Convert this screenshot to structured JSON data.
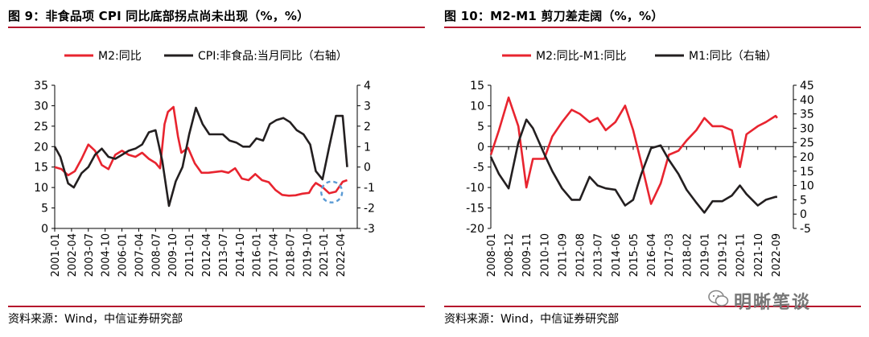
{
  "left": {
    "title": "图 9：非食品项 CPI 同比底部拐点尚未出现（%，%）",
    "source": "资料来源：Wind，中信证券研究部"
  },
  "right": {
    "title": "图 10：M2-M1 剪刀差走阔（%，%）",
    "source": "资料来源：Wind，中信证券研究部"
  },
  "watermark": "明晰笔谈",
  "colors": {
    "red": "#e8242f",
    "black": "#231f20",
    "rule": "#b5162c",
    "circle": "#5b9bd5"
  },
  "chart_data": [
    {
      "type": "line",
      "title": "图 9：非食品项 CPI 同比底部拐点尚未出现（%，%）",
      "legend_position": "top",
      "grid": false,
      "x_tick_labels": [
        "2001-01",
        "2002-04",
        "2003-07",
        "2004-10",
        "2006-01",
        "2007-04",
        "2008-07",
        "2009-10",
        "2011-01",
        "2012-04",
        "2013-07",
        "2014-10",
        "2016-01",
        "2017-04",
        "2018-07",
        "2019-10",
        "2021-01",
        "2022-04"
      ],
      "y_left": {
        "ticks": [
          0,
          5,
          10,
          15,
          20,
          25,
          30,
          35
        ],
        "ylim": [
          0,
          35
        ]
      },
      "y_right": {
        "ticks": [
          -3,
          -2,
          -1,
          0,
          1,
          2,
          3,
          4
        ],
        "ylim": [
          -3,
          4
        ]
      },
      "series": [
        {
          "name": "M2:同比",
          "axis": "left",
          "color": "red",
          "x": [
            "2001-01",
            "2001-07",
            "2002-01",
            "2002-07",
            "2003-01",
            "2003-07",
            "2004-01",
            "2004-07",
            "2005-01",
            "2005-07",
            "2006-01",
            "2006-07",
            "2007-01",
            "2007-07",
            "2008-01",
            "2008-07",
            "2008-11",
            "2009-03",
            "2009-06",
            "2009-11",
            "2010-03",
            "2010-06",
            "2010-12",
            "2011-06",
            "2011-12",
            "2012-06",
            "2012-12",
            "2013-06",
            "2013-12",
            "2014-06",
            "2014-12",
            "2015-06",
            "2015-12",
            "2016-06",
            "2016-12",
            "2017-06",
            "2017-12",
            "2018-06",
            "2018-12",
            "2019-06",
            "2019-12",
            "2020-03",
            "2020-06",
            "2020-12",
            "2021-06",
            "2021-12",
            "2022-06",
            "2022-10"
          ],
          "y": [
            15.0,
            14.5,
            13.0,
            14.0,
            17.0,
            20.5,
            19.0,
            15.5,
            14.5,
            18.0,
            19.0,
            18.0,
            17.5,
            18.5,
            17.0,
            16.0,
            14.7,
            25.5,
            28.5,
            29.7,
            22.5,
            18.5,
            19.7,
            15.9,
            13.6,
            13.6,
            13.8,
            14.0,
            13.6,
            14.7,
            12.2,
            11.8,
            13.3,
            11.8,
            11.3,
            9.4,
            8.2,
            8.0,
            8.1,
            8.5,
            8.7,
            10.1,
            11.1,
            10.1,
            8.6,
            9.0,
            11.4,
            11.8
          ]
        },
        {
          "name": "CPI:非食品:当月同比（右轴）",
          "axis": "right",
          "color": "black",
          "x": [
            "2001-01",
            "2001-06",
            "2002-01",
            "2002-06",
            "2003-01",
            "2003-07",
            "2004-01",
            "2004-07",
            "2005-01",
            "2005-07",
            "2006-01",
            "2006-07",
            "2007-01",
            "2007-07",
            "2008-01",
            "2008-07",
            "2009-01",
            "2009-07",
            "2010-01",
            "2010-07",
            "2011-01",
            "2011-07",
            "2012-01",
            "2012-07",
            "2013-01",
            "2013-07",
            "2014-01",
            "2014-07",
            "2015-01",
            "2015-07",
            "2016-01",
            "2016-07",
            "2017-01",
            "2017-07",
            "2018-01",
            "2018-07",
            "2019-01",
            "2019-07",
            "2020-01",
            "2020-06",
            "2020-12",
            "2021-06",
            "2021-12",
            "2022-06",
            "2022-10"
          ],
          "y": [
            1.0,
            0.5,
            -0.8,
            -1.0,
            -0.3,
            0.0,
            0.6,
            0.9,
            0.5,
            0.4,
            0.6,
            0.8,
            0.9,
            1.1,
            1.7,
            1.8,
            0.3,
            -1.9,
            -0.7,
            0.0,
            1.6,
            2.9,
            2.1,
            1.6,
            1.6,
            1.6,
            1.3,
            1.2,
            1.0,
            1.0,
            1.4,
            1.3,
            2.1,
            2.3,
            2.4,
            2.2,
            1.8,
            1.6,
            1.1,
            -0.2,
            -0.6,
            1.0,
            2.5,
            2.5,
            0.0
          ]
        }
      ],
      "annotations": [
        {
          "shape": "dashed-circle",
          "near": "2021-01"
        }
      ]
    },
    {
      "type": "line",
      "title": "图 10：M2-M1 剪刀差走阔（%，%）",
      "legend_position": "top",
      "grid": false,
      "x_tick_labels": [
        "2008-01",
        "2008-12",
        "2009-11",
        "2010-10",
        "2011-09",
        "2012-08",
        "2013-07",
        "2014-06",
        "2015-05",
        "2016-04",
        "2017-03",
        "2018-02",
        "2019-01",
        "2019-12",
        "2020-11",
        "2021-10",
        "2022-09"
      ],
      "y_left": {
        "ticks": [
          -20,
          -15,
          -10,
          -5,
          0,
          5,
          10,
          15
        ],
        "ylim": [
          -20,
          15
        ]
      },
      "y_right": {
        "ticks": [
          -5,
          0,
          5,
          10,
          15,
          20,
          25,
          30,
          35,
          40,
          45
        ],
        "ylim": [
          -5,
          45
        ]
      },
      "series": [
        {
          "name": "M2:同比-M1:同比",
          "axis": "left",
          "color": "red",
          "x": [
            "2008-01",
            "2008-06",
            "2008-12",
            "2009-06",
            "2009-11",
            "2010-03",
            "2010-10",
            "2011-03",
            "2011-09",
            "2012-03",
            "2012-08",
            "2013-02",
            "2013-07",
            "2013-12",
            "2014-06",
            "2014-12",
            "2015-05",
            "2015-10",
            "2016-04",
            "2016-10",
            "2017-03",
            "2017-09",
            "2018-02",
            "2018-08",
            "2019-01",
            "2019-06",
            "2019-12",
            "2020-06",
            "2020-11",
            "2021-03",
            "2021-10",
            "2022-03",
            "2022-09",
            "2022-10"
          ],
          "y": [
            -2.0,
            4.0,
            12.0,
            5.0,
            -10.0,
            -3.0,
            -3.0,
            2.5,
            6.0,
            9.0,
            8.0,
            6.0,
            7.0,
            4.0,
            6.0,
            10.0,
            4.0,
            -4.0,
            -14.0,
            -9.0,
            -2.0,
            -1.0,
            1.5,
            4.0,
            7.0,
            5.0,
            5.0,
            4.0,
            -5.0,
            3.0,
            5.0,
            6.0,
            7.5,
            7.0
          ]
        },
        {
          "name": "M1:同比（右轴）",
          "axis": "right",
          "color": "black",
          "x": [
            "2008-01",
            "2008-06",
            "2008-12",
            "2009-06",
            "2009-11",
            "2010-03",
            "2010-10",
            "2011-03",
            "2011-09",
            "2012-03",
            "2012-08",
            "2013-02",
            "2013-07",
            "2013-12",
            "2014-06",
            "2014-12",
            "2015-05",
            "2015-10",
            "2016-04",
            "2016-10",
            "2017-03",
            "2017-09",
            "2018-02",
            "2018-08",
            "2019-01",
            "2019-06",
            "2019-12",
            "2020-06",
            "2020-11",
            "2021-03",
            "2021-10",
            "2022-03",
            "2022-09",
            "2022-10"
          ],
          "y": [
            20.0,
            14.0,
            9.0,
            25.0,
            33.0,
            30.0,
            21.0,
            15.0,
            9.0,
            5.0,
            5.0,
            13.0,
            10.0,
            9.0,
            8.5,
            3.0,
            5.0,
            14.0,
            23.0,
            24.0,
            19.0,
            14.0,
            8.5,
            4.0,
            0.5,
            4.5,
            4.5,
            6.5,
            10.0,
            7.0,
            3.0,
            5.0,
            6.0,
            6.0
          ]
        }
      ]
    }
  ]
}
